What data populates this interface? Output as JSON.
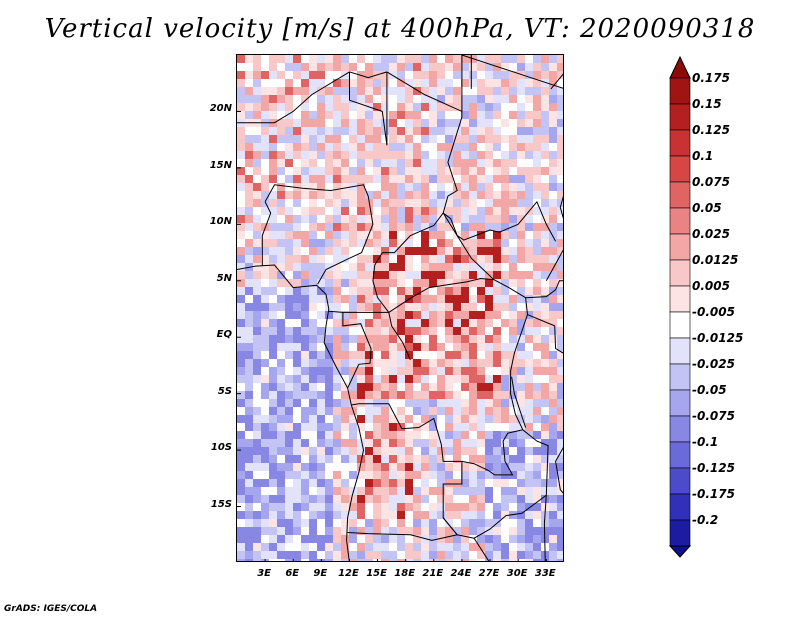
{
  "title": "Vertical velocity [m/s] at 400hPa, VT: 2020090318",
  "credit": "GrADS: IGES/COLA",
  "map": {
    "lon_range": [
      0,
      35
    ],
    "lat_range": [
      -20,
      25
    ],
    "lat_ticks": [
      {
        "value": 20,
        "label": "20N"
      },
      {
        "value": 15,
        "label": "15N"
      },
      {
        "value": 10,
        "label": "10N"
      },
      {
        "value": 5,
        "label": "5N"
      },
      {
        "value": 0,
        "label": "EQ"
      },
      {
        "value": -5,
        "label": "5S"
      },
      {
        "value": -10,
        "label": "10S"
      },
      {
        "value": -15,
        "label": "15S"
      }
    ],
    "lon_ticks": [
      {
        "value": 3,
        "label": "3E"
      },
      {
        "value": 6,
        "label": "6E"
      },
      {
        "value": 9,
        "label": "9E"
      },
      {
        "value": 12,
        "label": "12E"
      },
      {
        "value": 15,
        "label": "15E"
      },
      {
        "value": 18,
        "label": "18E"
      },
      {
        "value": 21,
        "label": "21E"
      },
      {
        "value": 24,
        "label": "24E"
      },
      {
        "value": 27,
        "label": "27E"
      },
      {
        "value": 30,
        "label": "30E"
      },
      {
        "value": 33,
        "label": "33E"
      }
    ]
  },
  "colorbar": {
    "levels": [
      {
        "label": "0.175",
        "color": "#a01414"
      },
      {
        "label": "0.15",
        "color": "#b42020"
      },
      {
        "label": "0.125",
        "color": "#c83232"
      },
      {
        "label": "0.1",
        "color": "#d64646"
      },
      {
        "label": "0.075",
        "color": "#e06464"
      },
      {
        "label": "0.05",
        "color": "#ea8484"
      },
      {
        "label": "0.025",
        "color": "#f2a6a6"
      },
      {
        "label": "0.0125",
        "color": "#f8c8c8"
      },
      {
        "label": "0.005",
        "color": "#fce4e4"
      },
      {
        "label": "-0.005",
        "color": "#ffffff"
      },
      {
        "label": "-0.0125",
        "color": "#e2e2fa"
      },
      {
        "label": "-0.025",
        "color": "#c4c4f4"
      },
      {
        "label": "-0.05",
        "color": "#a6a6ee"
      },
      {
        "label": "-0.075",
        "color": "#8888e4"
      },
      {
        "label": "-0.1",
        "color": "#6a6ad8"
      },
      {
        "label": "-0.125",
        "color": "#4c4cca"
      },
      {
        "label": "-0.175",
        "color": "#3030b8"
      },
      {
        "label": "-0.2",
        "color": "#1c1ca0"
      }
    ],
    "top_cap_color": "#8c0a0a",
    "bottom_cap_color": "#10108a"
  },
  "colors": {
    "positive_strong": "#b42020",
    "positive_weak": "#f2a6a6",
    "negative_weak": "#c4c4f4",
    "negative_strong": "#6a6ad8",
    "borders": "#000000"
  }
}
